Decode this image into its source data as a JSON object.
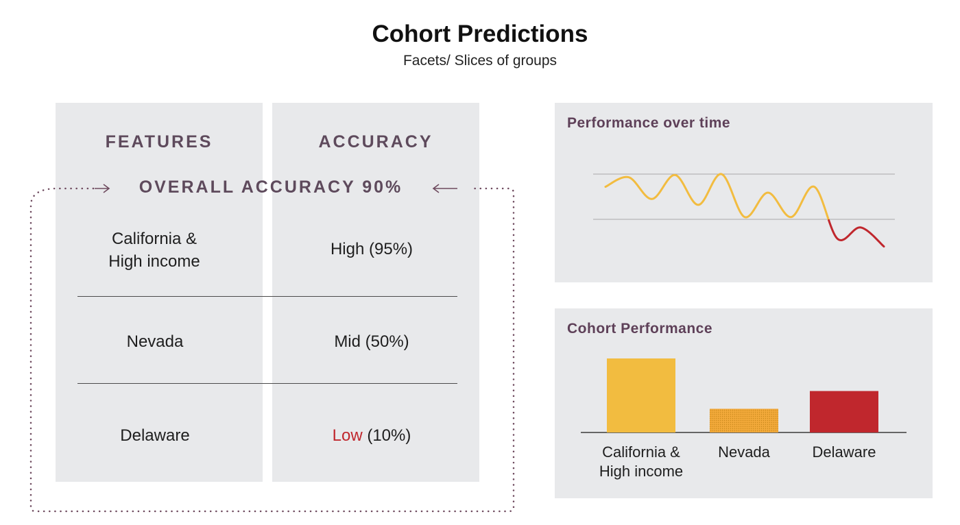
{
  "header": {
    "title": "Cohort Predictions",
    "subtitle": "Facets/ Slices of groups"
  },
  "table": {
    "features_header": "FEATURES",
    "accuracy_header": "ACCURACY",
    "overall_label": "OVERALL ACCURACY 90%",
    "rows": [
      {
        "feature_line1": "California &",
        "feature_line2": "High income",
        "level": "High",
        "percent": "(95%)"
      },
      {
        "feature": "Nevada",
        "level": "Mid",
        "percent": "(50%)"
      },
      {
        "feature": "Delaware",
        "level": "Low",
        "percent": "(10%)"
      }
    ],
    "colors": {
      "low": "#c0272d",
      "heading": "#5e4a5c",
      "panel": "#e8e9eb",
      "dotted_border": "#6e4a5e"
    }
  },
  "performance_card": {
    "title": "Performance over time"
  },
  "cohort_card": {
    "title": "Cohort Performance"
  },
  "chart_data": [
    {
      "type": "line",
      "title": "Performance over time",
      "note": "unlabelled trend; segments below the lower threshold line drawn in red",
      "values": [
        0.72,
        0.93,
        0.45,
        0.98,
        0.32,
        1.0,
        0.05,
        0.59,
        0.05,
        0.72,
        -0.43,
        -0.18,
        -0.6
      ],
      "thresholds": [
        1,
        0
      ],
      "colors": {
        "above": "#f2bc40",
        "below": "#c0272d",
        "threshold": "#a8a8a8"
      }
    },
    {
      "type": "bar",
      "title": "Cohort Performance",
      "categories": [
        "California & High income",
        "Nevada",
        "Delaware"
      ],
      "category_lines": [
        [
          "California &",
          "High income"
        ],
        [
          "Nevada"
        ],
        [
          "Delaware"
        ]
      ],
      "values": [
        100,
        32,
        56
      ],
      "colors": [
        "#f2bc40",
        "#f2a93a",
        "#c0272d"
      ],
      "patterns": [
        "solid",
        "dotted",
        "solid"
      ]
    }
  ]
}
